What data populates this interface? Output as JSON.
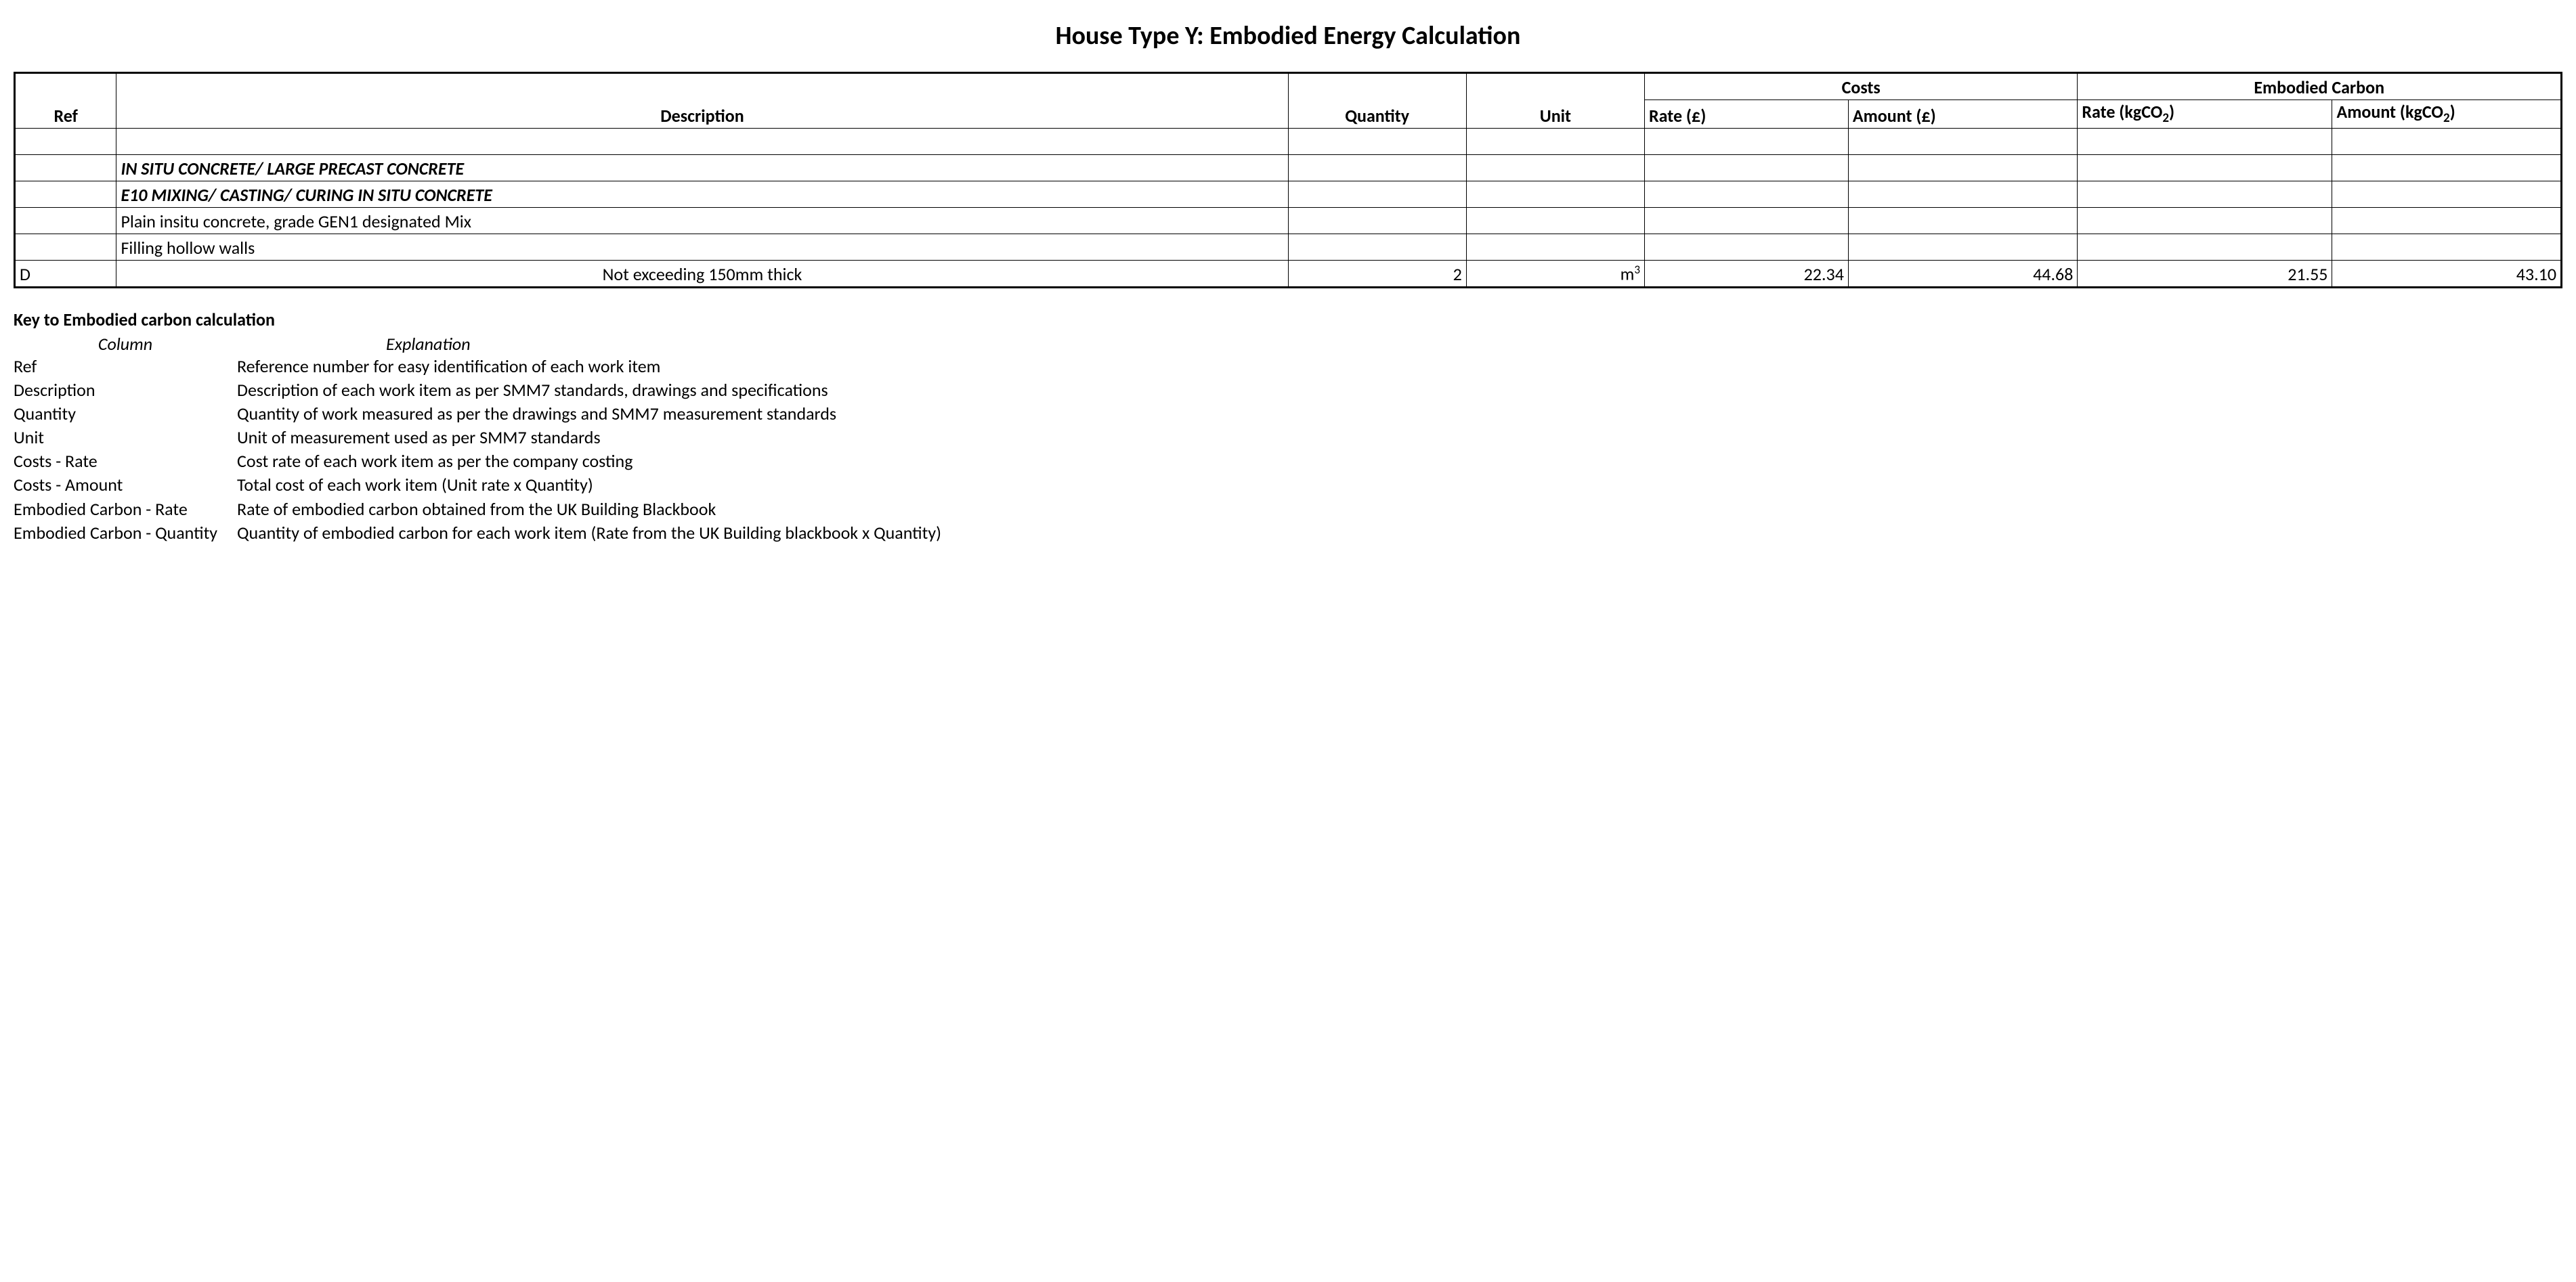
{
  "title": "House Type Y: Embodied Energy Calculation",
  "table": {
    "headers": {
      "ref": "Ref",
      "description": "Description",
      "quantity": "Quantity",
      "unit": "Unit",
      "costs": "Costs",
      "embodied": "Embodied Carbon",
      "rate_cost": "Rate (£)",
      "amount_cost": "Amount (£)",
      "rate_ec_prefix": "Rate (kgCO",
      "rate_ec_suffix": ")",
      "amount_ec_prefix": "Amount (kgCO",
      "amount_ec_suffix": ")"
    },
    "rows": [
      {
        "ref": "",
        "desc": "",
        "style": "blank"
      },
      {
        "ref": "",
        "desc": "IN SITU CONCRETE/ LARGE PRECAST CONCRETE",
        "style": "sect"
      },
      {
        "ref": "",
        "desc": "E10 MIXING/ CASTING/ CURING IN SITU CONCRETE",
        "style": "sect"
      },
      {
        "ref": "",
        "desc": "Plain insitu concrete, grade GEN1 designated Mix",
        "style": "plain"
      },
      {
        "ref": "",
        "desc": "Filling hollow walls",
        "style": "plain"
      },
      {
        "ref": "D",
        "desc": "Not exceeding 150mm thick",
        "style": "data",
        "qty": "2",
        "unit_prefix": "m",
        "unit_sup": "3",
        "rate_cost": "22.34",
        "amount_cost": "44.68",
        "rate_ec": "21.55",
        "amount_ec": "43.10"
      }
    ]
  },
  "key": {
    "title": "Key to Embodied carbon calculation",
    "col_head": "Column",
    "exp_head": "Explanation",
    "rows": [
      {
        "c": "Ref",
        "e": "Reference number for easy identification of each work item"
      },
      {
        "c": "Description",
        "e": "Description of each work item as per SMM7 standards, drawings and specifications"
      },
      {
        "c": "Quantity",
        "e": "Quantity of work measured as per the drawings and SMM7 measurement standards"
      },
      {
        "c": "Unit",
        "e": "Unit of measurement used as per SMM7 standards"
      },
      {
        "c": "Costs - Rate",
        "e": "Cost rate of each work item as per the company costing"
      },
      {
        "c": "Costs - Amount",
        "e": "Total cost of each work item (Unit rate x Quantity)"
      },
      {
        "c": "Embodied Carbon - Rate",
        "e": "Rate of embodied carbon obtained from the UK Building Blackbook"
      },
      {
        "c": "Embodied Carbon - Quantity",
        "e": "Quantity of embodied carbon for each work item (Rate from the UK Building blackbook x Quantity)"
      }
    ]
  },
  "colors": {
    "text": "#000000",
    "background": "#ffffff",
    "border": "#000000"
  },
  "fonts": {
    "title_size_pt": 28,
    "body_size_pt": 20,
    "family": "Calibri"
  }
}
